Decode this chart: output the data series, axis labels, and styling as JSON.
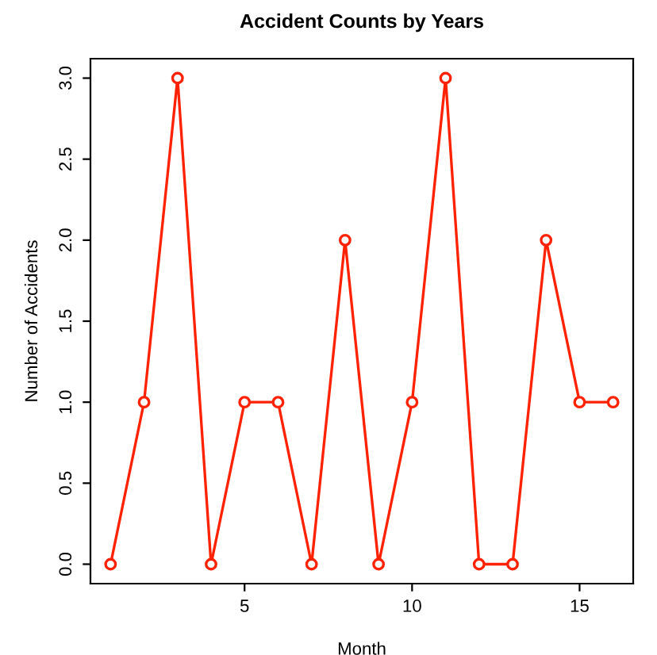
{
  "chart_data": {
    "type": "line",
    "title": "Accident Counts by Years",
    "xlabel": "Month",
    "ylabel": "Number of Accidents",
    "x": [
      1,
      2,
      3,
      4,
      5,
      6,
      7,
      8,
      9,
      10,
      11,
      12,
      13,
      14,
      15,
      16
    ],
    "series": [
      {
        "color": "#ff2200",
        "values": [
          0,
          1,
          3,
          0,
          1,
          1,
          0,
          2,
          0,
          1,
          3,
          0,
          0,
          2,
          1,
          1
        ]
      }
    ],
    "xlim": [
      0.4,
      16.6
    ],
    "ylim": [
      -0.12,
      3.12
    ],
    "xticks": [
      5,
      10,
      15
    ],
    "yticks": [
      {
        "value": 0,
        "label": "0.0"
      },
      {
        "value": 0.5,
        "label": "0.5"
      },
      {
        "value": 1,
        "label": "1.0"
      },
      {
        "value": 1.5,
        "label": "1.5"
      },
      {
        "value": 2,
        "label": "2.0"
      },
      {
        "value": 2.5,
        "label": "2.5"
      },
      {
        "value": 3,
        "label": "3.0"
      }
    ],
    "marker": "circle",
    "line_style": "solid",
    "grid": false,
    "legend": false
  }
}
